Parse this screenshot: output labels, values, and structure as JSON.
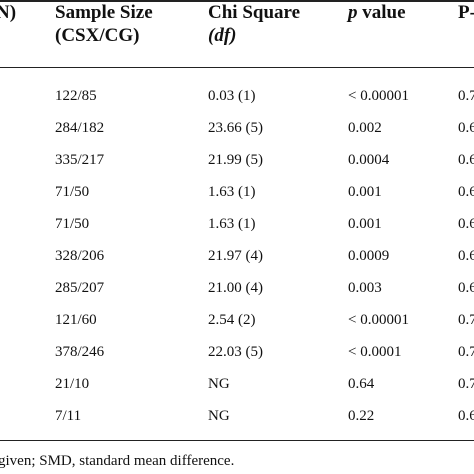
{
  "header": {
    "col0": "N)",
    "col1_line1": "Sample Size",
    "col1_line2": "(CSX/CG)",
    "col2_line1": "Chi Square",
    "col2_line2": "(df)",
    "col3_p": "p",
    "col3_rest": "value",
    "col4": "P-"
  },
  "table": {
    "rows": [
      [
        "122/85",
        "0.03 (1)",
        "< 0.00001",
        "0.7"
      ],
      [
        "284/182",
        "23.66 (5)",
        "0.002",
        "0.6"
      ],
      [
        "335/217",
        "21.99 (5)",
        "0.0004",
        "0.6"
      ],
      [
        "71/50",
        "1.63 (1)",
        "0.001",
        "0.6"
      ],
      [
        "71/50",
        "1.63 (1)",
        "0.001",
        "0.6"
      ],
      [
        "328/206",
        "21.97 (4)",
        "0.0009",
        "0.6"
      ],
      [
        "285/207",
        "21.00 (4)",
        "0.003",
        "0.6"
      ],
      [
        "121/60",
        "2.54 (2)",
        "< 0.00001",
        "0.7"
      ],
      [
        "378/246",
        "22.03 (5)",
        "< 0.0001",
        "0.7"
      ],
      [
        "21/10",
        "NG",
        "0.64",
        "0.7"
      ],
      [
        "7/11",
        "NG",
        "0.22",
        "0.6"
      ]
    ]
  },
  "footer": {
    "text": "given; SMD, standard mean difference."
  }
}
